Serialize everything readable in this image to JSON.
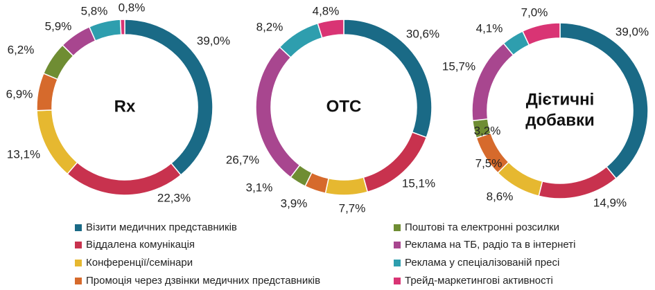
{
  "chart_data": [
    {
      "type": "donut",
      "title": "Rx",
      "series_values": [
        39.0,
        22.3,
        13.1,
        6.9,
        6.2,
        5.9,
        5.8,
        0.8
      ],
      "labels": [
        "39,0%",
        "22,3%",
        "13,1%",
        "6,9%",
        "6,2%",
        "5,9%",
        "5,8%",
        "0,8%"
      ]
    },
    {
      "type": "donut",
      "title": "OTC",
      "series_values": [
        30.6,
        15.1,
        7.7,
        3.9,
        3.1,
        26.7,
        8.2,
        4.8
      ],
      "labels": [
        "30,6%",
        "15,1%",
        "7,7%",
        "3,9%",
        "3,1%",
        "26,7%",
        "8,2%",
        "4,8%"
      ]
    },
    {
      "type": "donut",
      "title_lines": [
        "Дієтичні",
        "добавки"
      ],
      "series_values": [
        39.0,
        14.9,
        8.6,
        7.5,
        3.2,
        15.7,
        4.1,
        7.0
      ],
      "labels": [
        "39,0%",
        "14,9%",
        "8,6%",
        "7,5%",
        "3,2%",
        "15,7%",
        "4,1%",
        "7,0%"
      ]
    }
  ],
  "legend": [
    {
      "name": "Візити медичних представників",
      "color": "#1a6a86"
    },
    {
      "name": "Віддалена комунікація",
      "color": "#c8324e"
    },
    {
      "name": "Конференції/семінари",
      "color": "#e6b830"
    },
    {
      "name": "Промоція через дзвінки медичних представників",
      "color": "#d66a2c"
    },
    {
      "name": "Поштові та електронні розсилки",
      "color": "#6f8d33"
    },
    {
      "name": "Реклама на ТБ, радіо та в інтернеті",
      "color": "#a8468f"
    },
    {
      "name": "Реклама у спеціалізованій пресі",
      "color": "#2e9eae"
    },
    {
      "name": "Трейд-маркетингові активності",
      "color": "#d93474"
    }
  ]
}
